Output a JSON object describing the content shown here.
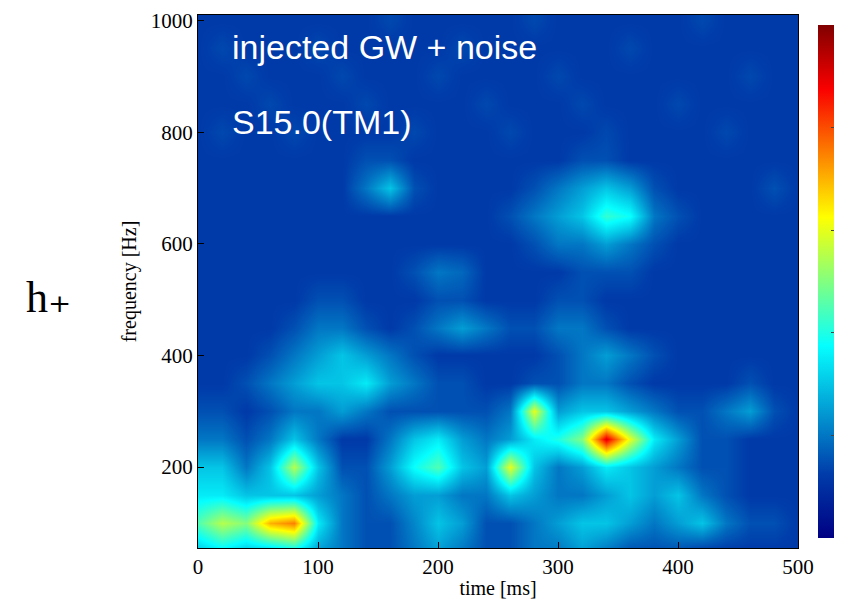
{
  "chart_data": {
    "type": "heatmap",
    "panel_label": "h₊",
    "annotations": [
      "injected GW + noise",
      "S15.0(TM1)"
    ],
    "x_label": "time [ms]",
    "y_label": "frequency [Hz]",
    "color": "Jet",
    "xlim": [
      0,
      500
    ],
    "xticks": [
      0,
      100,
      200,
      300,
      400,
      500
    ],
    "ylim": [
      55,
      1010
    ],
    "yticks": [
      200,
      400,
      600,
      800,
      1000
    ],
    "x": [
      0,
      20,
      40,
      60,
      80,
      100,
      120,
      140,
      160,
      180,
      200,
      220,
      240,
      260,
      280,
      300,
      320,
      340,
      360,
      380,
      400,
      420,
      440,
      460,
      480,
      500
    ],
    "y": [
      50,
      100,
      150,
      200,
      250,
      300,
      350,
      400,
      450,
      500,
      550,
      600,
      650,
      700,
      750,
      800,
      850,
      900,
      950,
      1000
    ],
    "cells": [
      [
        0.3,
        0.35,
        0.3,
        0.3,
        0.35,
        0.25,
        0.2,
        0.15,
        0.15,
        0.2,
        0.25,
        0.2,
        0.15,
        0.15,
        0.2,
        0.2,
        0.25,
        0.2,
        0.15,
        0.15,
        0.15,
        0.12,
        0.12,
        0.12,
        0.12,
        0.12
      ],
      [
        0.45,
        0.55,
        0.5,
        0.7,
        0.75,
        0.35,
        0.2,
        0.15,
        0.15,
        0.22,
        0.3,
        0.25,
        0.15,
        0.15,
        0.2,
        0.25,
        0.3,
        0.3,
        0.25,
        0.2,
        0.25,
        0.3,
        0.2,
        0.15,
        0.15,
        0.12
      ],
      [
        0.35,
        0.35,
        0.3,
        0.3,
        0.3,
        0.25,
        0.2,
        0.15,
        0.2,
        0.25,
        0.25,
        0.2,
        0.2,
        0.3,
        0.25,
        0.2,
        0.2,
        0.25,
        0.3,
        0.25,
        0.3,
        0.2,
        0.15,
        0.12,
        0.12,
        0.12
      ],
      [
        0.3,
        0.3,
        0.2,
        0.3,
        0.55,
        0.3,
        0.15,
        0.15,
        0.25,
        0.38,
        0.45,
        0.3,
        0.25,
        0.6,
        0.3,
        0.2,
        0.25,
        0.35,
        0.3,
        0.25,
        0.2,
        0.15,
        0.15,
        0.12,
        0.12,
        0.12
      ],
      [
        0.2,
        0.2,
        0.15,
        0.2,
        0.3,
        0.2,
        0.12,
        0.12,
        0.2,
        0.3,
        0.35,
        0.25,
        0.2,
        0.25,
        0.35,
        0.4,
        0.5,
        0.9,
        0.6,
        0.35,
        0.25,
        0.15,
        0.15,
        0.12,
        0.12,
        0.12
      ],
      [
        0.15,
        0.15,
        0.12,
        0.15,
        0.2,
        0.2,
        0.25,
        0.2,
        0.15,
        0.15,
        0.15,
        0.15,
        0.15,
        0.2,
        0.6,
        0.25,
        0.3,
        0.3,
        0.25,
        0.2,
        0.15,
        0.15,
        0.2,
        0.25,
        0.15,
        0.12
      ],
      [
        0.12,
        0.12,
        0.15,
        0.2,
        0.25,
        0.3,
        0.3,
        0.35,
        0.25,
        0.2,
        0.15,
        0.15,
        0.12,
        0.12,
        0.15,
        0.15,
        0.2,
        0.2,
        0.15,
        0.12,
        0.12,
        0.12,
        0.12,
        0.15,
        0.12,
        0.12
      ],
      [
        0.12,
        0.12,
        0.12,
        0.15,
        0.2,
        0.25,
        0.3,
        0.25,
        0.2,
        0.15,
        0.12,
        0.12,
        0.12,
        0.12,
        0.12,
        0.15,
        0.2,
        0.25,
        0.2,
        0.15,
        0.12,
        0.12,
        0.12,
        0.12,
        0.12,
        0.12
      ],
      [
        0.12,
        0.12,
        0.12,
        0.12,
        0.15,
        0.2,
        0.2,
        0.15,
        0.12,
        0.15,
        0.2,
        0.25,
        0.2,
        0.15,
        0.15,
        0.2,
        0.2,
        0.15,
        0.12,
        0.12,
        0.12,
        0.12,
        0.12,
        0.12,
        0.12,
        0.12
      ],
      [
        0.12,
        0.12,
        0.12,
        0.12,
        0.12,
        0.15,
        0.15,
        0.12,
        0.12,
        0.12,
        0.15,
        0.15,
        0.12,
        0.12,
        0.12,
        0.15,
        0.15,
        0.12,
        0.12,
        0.12,
        0.12,
        0.12,
        0.12,
        0.12,
        0.12,
        0.12
      ],
      [
        0.12,
        0.12,
        0.12,
        0.12,
        0.12,
        0.12,
        0.12,
        0.12,
        0.12,
        0.15,
        0.2,
        0.18,
        0.12,
        0.12,
        0.12,
        0.12,
        0.15,
        0.15,
        0.15,
        0.12,
        0.12,
        0.12,
        0.12,
        0.12,
        0.12,
        0.12
      ],
      [
        0.12,
        0.12,
        0.12,
        0.12,
        0.12,
        0.12,
        0.12,
        0.12,
        0.12,
        0.12,
        0.12,
        0.12,
        0.12,
        0.12,
        0.15,
        0.2,
        0.2,
        0.25,
        0.2,
        0.15,
        0.12,
        0.12,
        0.12,
        0.12,
        0.12,
        0.12
      ],
      [
        0.12,
        0.12,
        0.12,
        0.12,
        0.12,
        0.12,
        0.12,
        0.12,
        0.12,
        0.12,
        0.12,
        0.12,
        0.12,
        0.15,
        0.2,
        0.25,
        0.3,
        0.42,
        0.38,
        0.2,
        0.15,
        0.12,
        0.12,
        0.12,
        0.12,
        0.12
      ],
      [
        0.12,
        0.12,
        0.12,
        0.12,
        0.12,
        0.12,
        0.12,
        0.2,
        0.3,
        0.15,
        0.12,
        0.12,
        0.12,
        0.12,
        0.15,
        0.2,
        0.25,
        0.3,
        0.25,
        0.15,
        0.12,
        0.12,
        0.12,
        0.12,
        0.15,
        0.12
      ],
      [
        0.12,
        0.12,
        0.12,
        0.12,
        0.12,
        0.12,
        0.12,
        0.15,
        0.15,
        0.12,
        0.12,
        0.12,
        0.12,
        0.12,
        0.12,
        0.12,
        0.15,
        0.15,
        0.12,
        0.12,
        0.12,
        0.12,
        0.12,
        0.12,
        0.12,
        0.12
      ],
      [
        0.12,
        0.14,
        0.12,
        0.12,
        0.14,
        0.12,
        0.12,
        0.12,
        0.12,
        0.14,
        0.12,
        0.12,
        0.12,
        0.14,
        0.12,
        0.12,
        0.12,
        0.14,
        0.12,
        0.12,
        0.12,
        0.12,
        0.14,
        0.12,
        0.12,
        0.12
      ],
      [
        0.12,
        0.12,
        0.12,
        0.14,
        0.12,
        0.12,
        0.12,
        0.14,
        0.12,
        0.12,
        0.12,
        0.12,
        0.14,
        0.12,
        0.12,
        0.12,
        0.14,
        0.12,
        0.12,
        0.12,
        0.14,
        0.12,
        0.12,
        0.12,
        0.12,
        0.12
      ],
      [
        0.12,
        0.12,
        0.14,
        0.12,
        0.12,
        0.12,
        0.14,
        0.12,
        0.12,
        0.12,
        0.14,
        0.12,
        0.12,
        0.12,
        0.12,
        0.14,
        0.12,
        0.12,
        0.12,
        0.12,
        0.12,
        0.12,
        0.12,
        0.14,
        0.12,
        0.12
      ],
      [
        0.12,
        0.14,
        0.12,
        0.12,
        0.12,
        0.14,
        0.12,
        0.12,
        0.12,
        0.12,
        0.12,
        0.14,
        0.12,
        0.12,
        0.12,
        0.12,
        0.12,
        0.12,
        0.14,
        0.12,
        0.12,
        0.12,
        0.12,
        0.12,
        0.12,
        0.12
      ],
      [
        0.12,
        0.12,
        0.12,
        0.12,
        0.12,
        0.12,
        0.12,
        0.12,
        0.14,
        0.12,
        0.12,
        0.12,
        0.12,
        0.12,
        0.14,
        0.12,
        0.12,
        0.12,
        0.12,
        0.12,
        0.12,
        0.14,
        0.12,
        0.12,
        0.12,
        0.12
      ]
    ],
    "colorbar": {
      "range": [
        0,
        1
      ]
    }
  }
}
